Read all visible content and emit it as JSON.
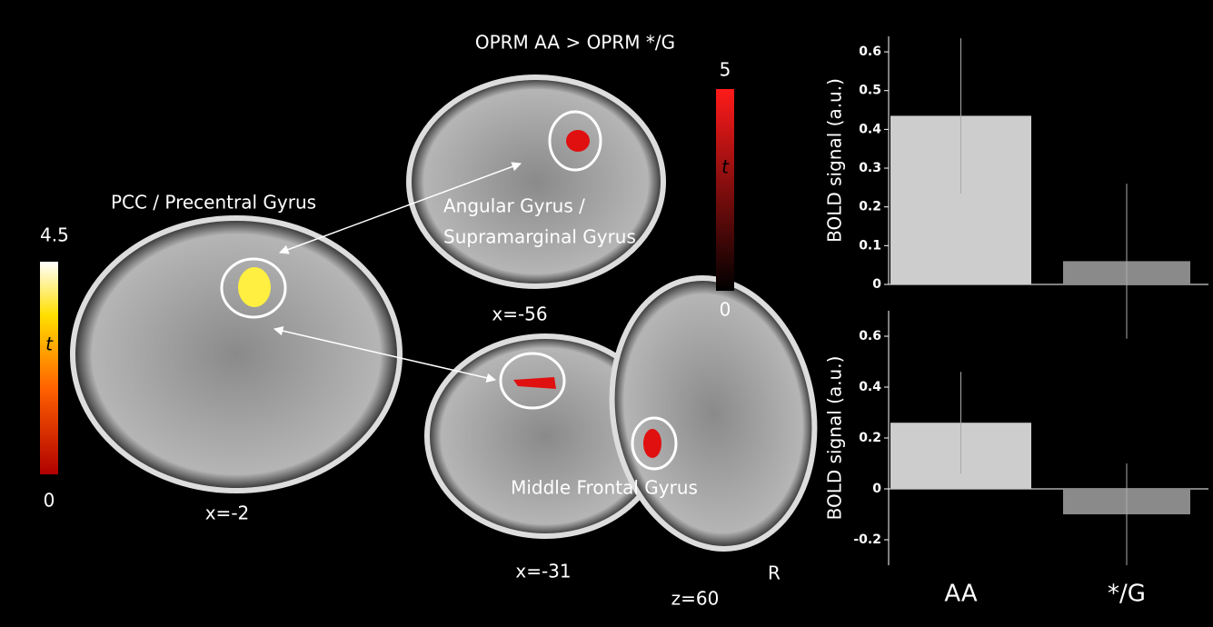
{
  "figure": {
    "title": "OPRM AA > OPRM */G",
    "regions": [
      "PCC / Precentral Gyrus",
      "Angular Gyrus /",
      "Supramarginal Gyrus",
      "Middle Frontal Gyrus"
    ],
    "slices": [
      "x=-2",
      "x=-56",
      "x=-31",
      "z=60"
    ],
    "orientation": "R",
    "colorbars": [
      {
        "symbol": "t",
        "max": 4.5,
        "min": 0
      },
      {
        "symbol": "t",
        "max": 5,
        "min": 0
      }
    ]
  },
  "chart_data": [
    {
      "type": "bar",
      "ylabel": "BOLD signal (a.u.)",
      "categories": [
        null,
        null
      ],
      "values": [
        0.435,
        0.06
      ],
      "errors": [
        0.2,
        0.2
      ],
      "colors": [
        "#cdcdcd",
        "#8a8a8a"
      ],
      "ylim": [
        0,
        0.64
      ],
      "yticks": [
        0,
        0.1,
        0.2,
        0.3,
        0.4,
        0.5,
        0.6
      ]
    },
    {
      "type": "bar",
      "ylabel": "BOLD signal (a.u.)",
      "categories": [
        "AA",
        "*/G"
      ],
      "values": [
        0.26,
        -0.1
      ],
      "errors": [
        0.2,
        0.2
      ],
      "colors": [
        "#cdcdcd",
        "#8a8a8a"
      ],
      "ylim": [
        -0.3,
        0.7
      ],
      "yticks": [
        -0.2,
        0,
        0.2,
        0.4,
        0.6
      ]
    }
  ]
}
